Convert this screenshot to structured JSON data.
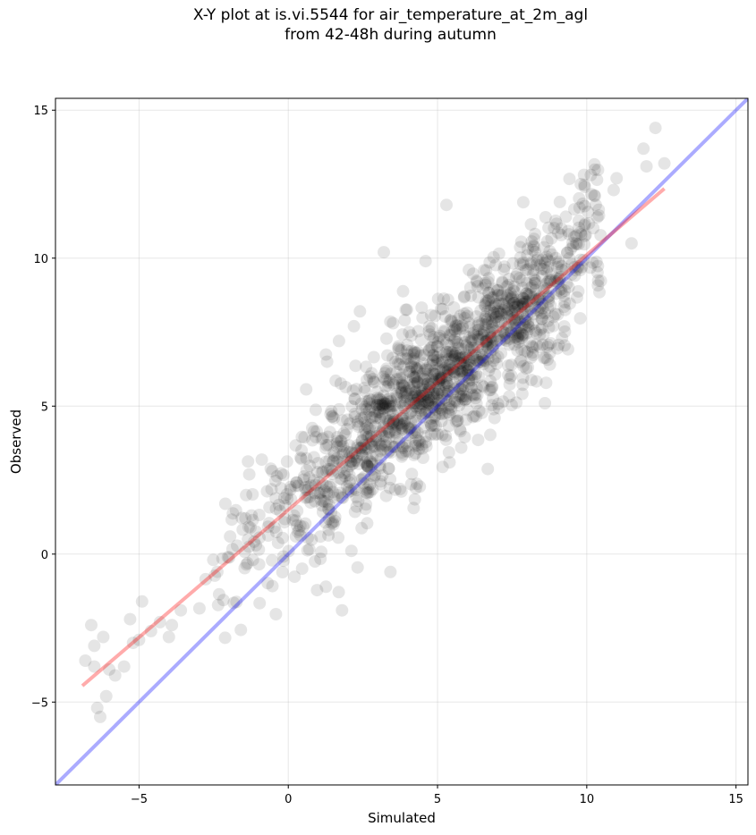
{
  "chart_data": {
    "type": "scatter",
    "title": "X-Y plot at is.vi.5544 for air_temperature_at_2m_agl",
    "subtitle": "from 42-48h during autumn",
    "xlabel": "Simulated",
    "ylabel": "Observed",
    "xlim": [
      -7.8,
      15.4
    ],
    "ylim": [
      -7.8,
      15.4
    ],
    "xticks": [
      -5,
      0,
      5,
      10,
      15
    ],
    "yticks": [
      -5,
      0,
      5,
      10,
      15
    ],
    "tick_labels": [
      "−5",
      "0",
      "5",
      "10",
      "15"
    ],
    "grid": true,
    "point_color": "#000000",
    "point_alpha": 0.1,
    "lines": [
      {
        "x": [
          -7.8,
          15.4
        ],
        "y": [
          -7.8,
          15.4
        ],
        "color": "#0000ff",
        "alpha": 0.33
      },
      {
        "x": [
          -6.9,
          12.6
        ],
        "y": [
          -4.45,
          12.35
        ],
        "color": "#ff0000",
        "alpha": 0.33
      }
    ],
    "outliers": {
      "x": [
        -6.8,
        -6.6,
        -6.5,
        -6.3,
        -6.4,
        -6.2,
        -6.0,
        -5.8,
        -5.5,
        -5.3,
        -5.0,
        -4.9,
        -4.6,
        -4.3,
        -3.9,
        -3.6,
        -6.5,
        -6.1,
        -5.2,
        -4.0,
        1.3,
        1.7,
        3.9,
        2.4,
        5.3,
        12.3,
        12.6,
        11.9,
        12.0,
        11.0,
        10.9,
        11.5,
        10.3,
        9.8,
        9.3,
        9.1,
        4.6,
        3.2,
        2.2,
        1.8,
        8.6,
        9.5
      ],
      "y": [
        -3.6,
        -2.4,
        -3.8,
        -5.5,
        -5.2,
        -2.8,
        -3.9,
        -4.1,
        -3.8,
        -2.2,
        -2.9,
        -1.6,
        -2.6,
        -2.3,
        -2.4,
        -1.9,
        -3.1,
        -4.8,
        -3.0,
        -2.8,
        6.5,
        7.2,
        7.9,
        8.2,
        11.8,
        14.4,
        13.2,
        13.7,
        13.1,
        12.7,
        12.3,
        10.5,
        11.8,
        12.5,
        11.4,
        11.9,
        9.9,
        10.2,
        7.7,
        -1.9,
        5.1,
        9.8
      ]
    },
    "cluster_summary": {
      "n_points": 1500,
      "x_range": [
        -3.0,
        10.5
      ],
      "fit_slope": 0.86,
      "fit_intercept": 1.48
    }
  }
}
